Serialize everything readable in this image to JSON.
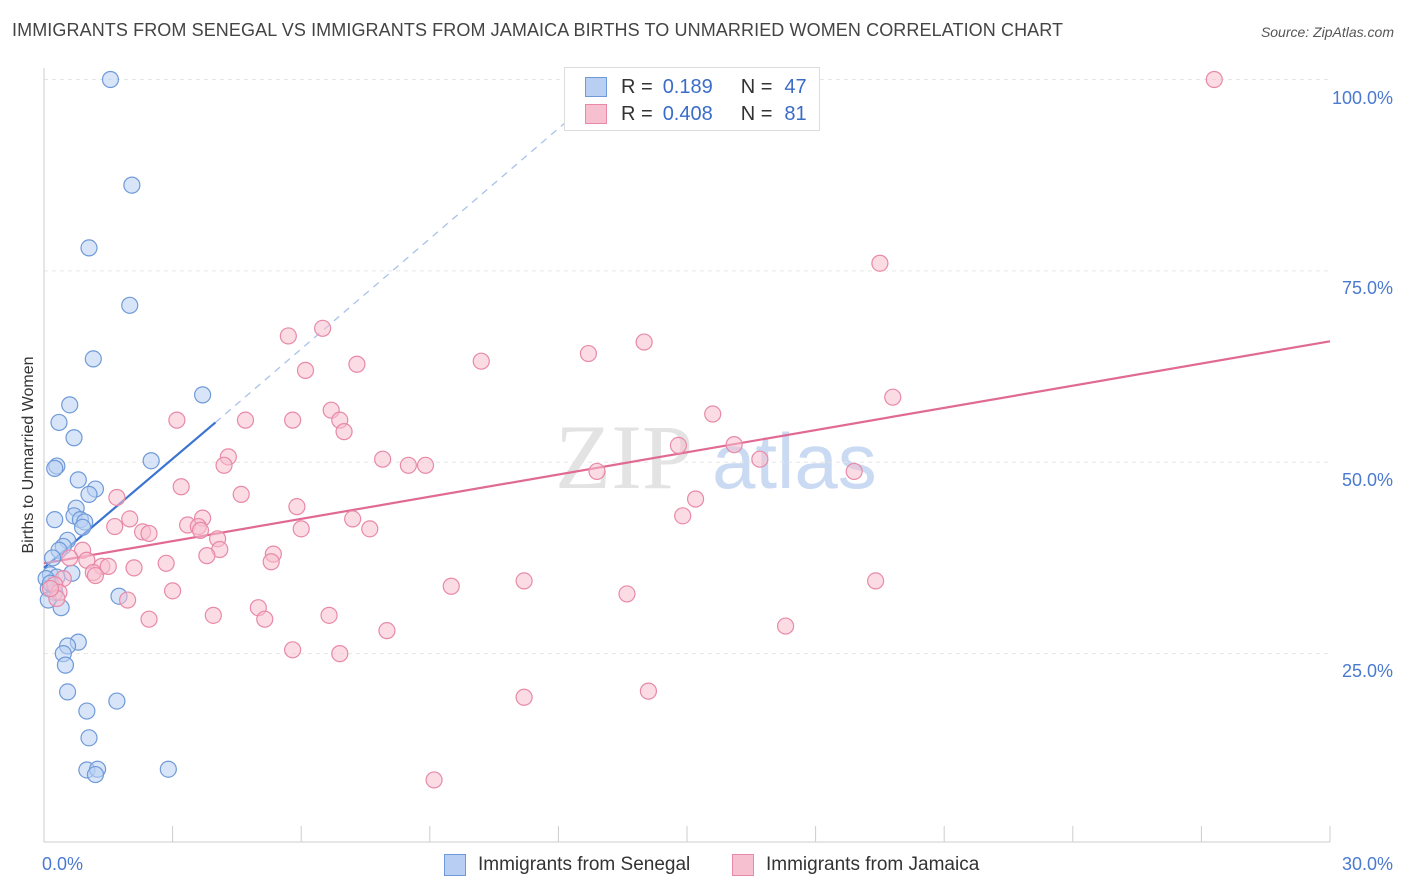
{
  "title": "IMMIGRANTS FROM SENEGAL VS IMMIGRANTS FROM JAMAICA BIRTHS TO UNMARRIED WOMEN CORRELATION CHART",
  "source": "Source: ZipAtlas.com",
  "watermark": {
    "zip": "ZIP",
    "atlas": "atlas"
  },
  "legend": {
    "r_label": "R =",
    "n_label": "N =",
    "senegal": {
      "r": "0.189",
      "n": "47"
    },
    "jamaica": {
      "r": "0.408",
      "n": "81"
    }
  },
  "colors": {
    "senegal_fill": "#b8cff3",
    "senegal_stroke": "#6f9ad8",
    "senegal_line": "#3a74d0",
    "jamaica_fill": "#f7c0d0",
    "jamaica_stroke": "#e889a8",
    "jamaica_line": "#e06a93"
  },
  "chart_data": {
    "type": "scatter",
    "title": "IMMIGRANTS FROM SENEGAL VS IMMIGRANTS FROM JAMAICA BIRTHS TO UNMARRIED WOMEN CORRELATION CHART",
    "xlabel": "",
    "ylabel": "Births to Unmarried Women",
    "xlim": [
      0,
      30
    ],
    "ylim": [
      0,
      102
    ],
    "x_tick_labels": [
      "0.0%",
      "30.0%"
    ],
    "y_ticks": [
      25,
      50,
      75,
      100
    ],
    "y_tick_labels": [
      "25.0%",
      "50.0%",
      "75.0%",
      "100.0%"
    ],
    "legend_position": "top-center",
    "series": [
      {
        "name": "Immigrants from Senegal",
        "points": [
          [
            1.55,
            100
          ],
          [
            2.05,
            86.2
          ],
          [
            1.05,
            78.0
          ],
          [
            2.0,
            70.5
          ],
          [
            1.15,
            63.5
          ],
          [
            3.7,
            58.8
          ],
          [
            0.6,
            57.5
          ],
          [
            0.35,
            55.2
          ],
          [
            0.7,
            53.2
          ],
          [
            2.5,
            50.2
          ],
          [
            0.3,
            49.5
          ],
          [
            0.25,
            49.2
          ],
          [
            0.8,
            47.7
          ],
          [
            1.2,
            46.5
          ],
          [
            1.05,
            45.8
          ],
          [
            0.75,
            44.0
          ],
          [
            0.7,
            43.0
          ],
          [
            0.25,
            42.5
          ],
          [
            0.85,
            42.5
          ],
          [
            0.95,
            42.2
          ],
          [
            0.9,
            41.5
          ],
          [
            0.55,
            39.8
          ],
          [
            0.45,
            39.0
          ],
          [
            0.35,
            38.5
          ],
          [
            0.2,
            37.5
          ],
          [
            0.65,
            35.5
          ],
          [
            0.15,
            35.3
          ],
          [
            0.3,
            35.0
          ],
          [
            0.05,
            34.8
          ],
          [
            0.1,
            33.5
          ],
          [
            0.25,
            33.0
          ],
          [
            0.1,
            32.0
          ],
          [
            1.75,
            32.5
          ],
          [
            0.4,
            31.0
          ],
          [
            0.8,
            26.5
          ],
          [
            0.55,
            26.0
          ],
          [
            0.45,
            25.0
          ],
          [
            0.5,
            23.5
          ],
          [
            0.55,
            20.0
          ],
          [
            1.7,
            18.8
          ],
          [
            1.0,
            17.5
          ],
          [
            1.05,
            14.0
          ],
          [
            1.0,
            9.8
          ],
          [
            1.25,
            9.9
          ],
          [
            1.2,
            9.2
          ],
          [
            2.9,
            9.9
          ],
          [
            0.15,
            34.2
          ]
        ]
      },
      {
        "name": "Immigrants from Jamaica",
        "points": [
          [
            27.3,
            100
          ],
          [
            19.5,
            76.0
          ],
          [
            6.5,
            67.5
          ],
          [
            5.7,
            66.5
          ],
          [
            14.0,
            65.7
          ],
          [
            12.7,
            64.2
          ],
          [
            10.2,
            63.2
          ],
          [
            7.3,
            62.8
          ],
          [
            6.1,
            62.0
          ],
          [
            19.8,
            58.5
          ],
          [
            6.7,
            56.8
          ],
          [
            15.6,
            56.3
          ],
          [
            3.1,
            55.5
          ],
          [
            4.7,
            55.5
          ],
          [
            5.8,
            55.5
          ],
          [
            6.9,
            55.5
          ],
          [
            7.0,
            54.0
          ],
          [
            16.1,
            52.3
          ],
          [
            14.8,
            52.2
          ],
          [
            4.3,
            50.7
          ],
          [
            7.9,
            50.4
          ],
          [
            16.7,
            50.4
          ],
          [
            4.2,
            49.6
          ],
          [
            8.5,
            49.6
          ],
          [
            8.9,
            49.6
          ],
          [
            12.9,
            48.8
          ],
          [
            18.9,
            48.8
          ],
          [
            3.2,
            46.8
          ],
          [
            4.6,
            45.8
          ],
          [
            1.7,
            45.4
          ],
          [
            15.2,
            45.2
          ],
          [
            5.9,
            44.2
          ],
          [
            14.9,
            43.0
          ],
          [
            2.0,
            42.6
          ],
          [
            3.7,
            42.7
          ],
          [
            7.2,
            42.6
          ],
          [
            3.35,
            41.8
          ],
          [
            1.65,
            41.6
          ],
          [
            3.6,
            41.6
          ],
          [
            6.0,
            41.3
          ],
          [
            7.6,
            41.3
          ],
          [
            3.65,
            41.1
          ],
          [
            2.3,
            40.9
          ],
          [
            2.45,
            40.7
          ],
          [
            4.05,
            40.0
          ],
          [
            4.1,
            38.6
          ],
          [
            0.9,
            38.5
          ],
          [
            5.35,
            38.0
          ],
          [
            3.8,
            37.8
          ],
          [
            0.6,
            37.5
          ],
          [
            1.0,
            37.2
          ],
          [
            5.3,
            37.0
          ],
          [
            2.85,
            36.8
          ],
          [
            1.35,
            36.4
          ],
          [
            1.5,
            36.4
          ],
          [
            2.1,
            36.2
          ],
          [
            1.15,
            35.6
          ],
          [
            1.2,
            35.2
          ],
          [
            0.45,
            34.8
          ],
          [
            0.25,
            34.0
          ],
          [
            11.2,
            34.5
          ],
          [
            9.5,
            33.8
          ],
          [
            19.4,
            34.5
          ],
          [
            0.35,
            33.0
          ],
          [
            3.0,
            33.2
          ],
          [
            13.6,
            32.8
          ],
          [
            0.3,
            32.2
          ],
          [
            1.95,
            32.0
          ],
          [
            5.0,
            31.0
          ],
          [
            3.95,
            30.0
          ],
          [
            6.65,
            30.0
          ],
          [
            2.45,
            29.5
          ],
          [
            5.15,
            29.5
          ],
          [
            17.3,
            28.6
          ],
          [
            8.0,
            28.0
          ],
          [
            5.8,
            25.5
          ],
          [
            6.9,
            25.0
          ],
          [
            14.1,
            20.1
          ],
          [
            11.2,
            19.3
          ],
          [
            9.1,
            8.5
          ],
          [
            0.15,
            33.5
          ]
        ]
      }
    ],
    "trend_lines": [
      {
        "series": "Immigrants from Senegal",
        "solid": [
          [
            0,
            36.2
          ],
          [
            4.0,
            55.2
          ]
        ],
        "dashed": [
          [
            4.0,
            55.2
          ],
          [
            12.5,
            96.0
          ]
        ]
      },
      {
        "series": "Immigrants from Jamaica",
        "solid": [
          [
            0,
            36.8
          ],
          [
            30,
            65.8
          ]
        ]
      }
    ]
  },
  "bottom_legend": {
    "senegal": "Immigrants from Senegal",
    "jamaica": "Immigrants from Jamaica"
  }
}
